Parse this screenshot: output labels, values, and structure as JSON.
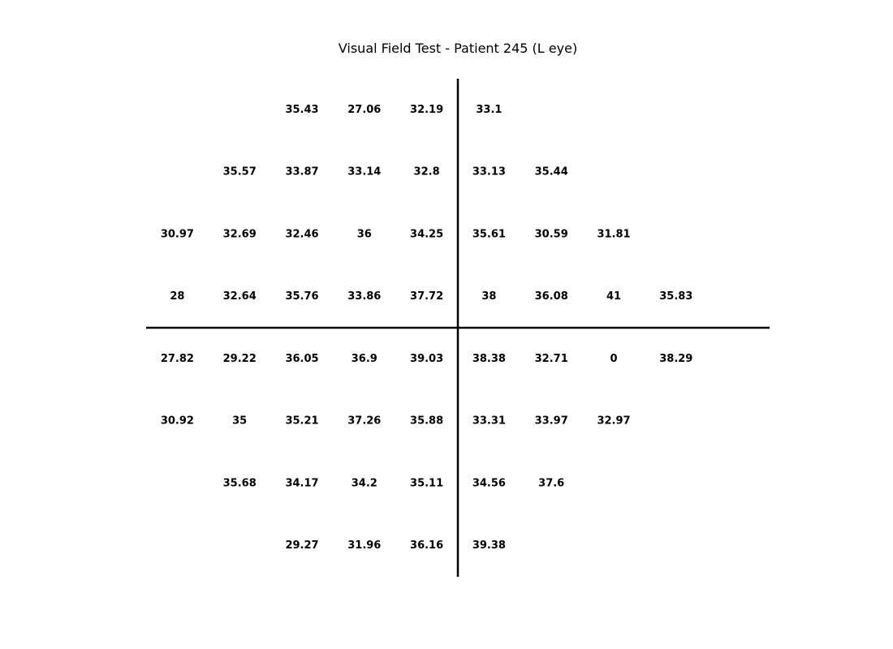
{
  "chart_data": {
    "type": "table",
    "title": "Visual Field Test - Patient 245 (L eye)",
    "x": [
      -4.5,
      -3.5,
      -2.5,
      -1.5,
      -0.5,
      0.5,
      1.5,
      2.5,
      3.5
    ],
    "rows": [
      {
        "y": 3.5,
        "values": [
          null,
          null,
          35.43,
          27.06,
          32.19,
          33.1,
          null,
          null,
          null
        ]
      },
      {
        "y": 2.5,
        "values": [
          null,
          35.57,
          33.87,
          33.14,
          32.8,
          33.13,
          35.44,
          null,
          null
        ]
      },
      {
        "y": 1.5,
        "values": [
          30.97,
          32.69,
          32.46,
          36.0,
          34.25,
          35.61,
          30.59,
          31.81,
          null
        ]
      },
      {
        "y": 0.5,
        "values": [
          28.0,
          32.64,
          35.76,
          33.86,
          37.72,
          38.0,
          36.08,
          41.0,
          35.83
        ]
      },
      {
        "y": -0.5,
        "values": [
          27.82,
          29.22,
          36.05,
          36.9,
          39.03,
          38.38,
          32.71,
          0.0,
          38.29
        ]
      },
      {
        "y": -1.5,
        "values": [
          30.92,
          35.0,
          35.21,
          37.26,
          35.88,
          33.31,
          33.97,
          32.97,
          null
        ]
      },
      {
        "y": -2.5,
        "values": [
          null,
          35.68,
          34.17,
          34.2,
          35.11,
          34.56,
          37.6,
          null,
          null
        ]
      },
      {
        "y": -3.5,
        "values": [
          null,
          null,
          29.27,
          31.96,
          36.16,
          39.38,
          null,
          null,
          null
        ]
      }
    ],
    "xlim": [
      -5,
      5
    ],
    "ylim": [
      -4,
      4
    ],
    "grid": false,
    "axes_visible": false,
    "colors": {
      "text": "#000000",
      "lines": "#000000",
      "background": "#ffffff"
    }
  }
}
